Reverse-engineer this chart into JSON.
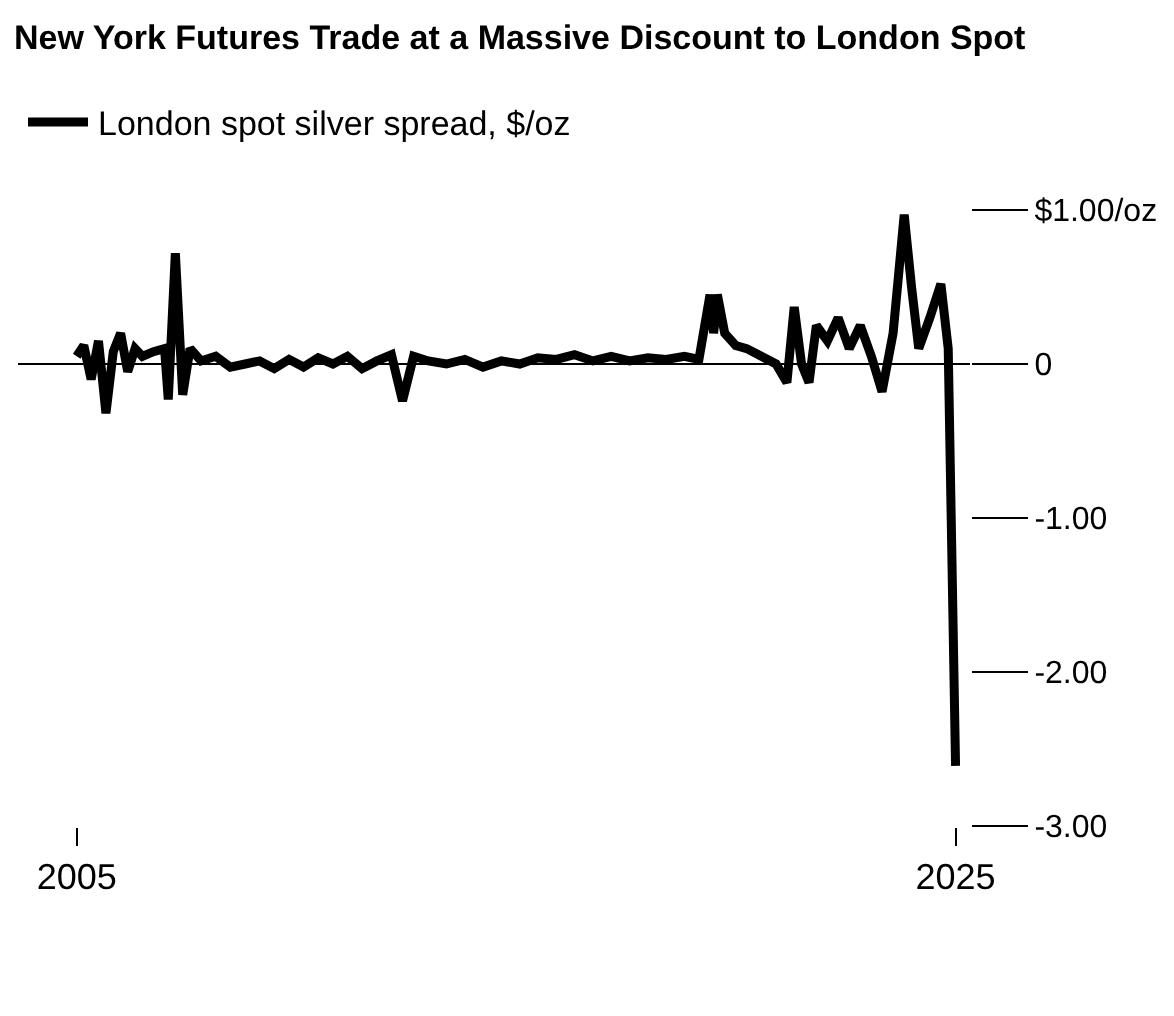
{
  "chart_data": {
    "type": "line",
    "title": "New York Futures Trade at a Massive Discount to London Spot",
    "x": [
      "2005-01",
      "2005-03",
      "2005-05",
      "2005-07",
      "2005-09",
      "2005-11",
      "2006-01",
      "2006-03",
      "2006-05",
      "2006-07",
      "2006-10",
      "2007-01",
      "2007-02",
      "2007-04",
      "2007-06",
      "2007-08",
      "2007-11",
      "2008-03",
      "2008-07",
      "2008-11",
      "2009-03",
      "2009-07",
      "2009-11",
      "2010-03",
      "2010-07",
      "2010-11",
      "2011-03",
      "2011-07",
      "2011-11",
      "2012-03",
      "2012-06",
      "2012-09",
      "2013-01",
      "2013-06",
      "2013-11",
      "2014-04",
      "2014-09",
      "2015-02",
      "2015-07",
      "2015-12",
      "2016-05",
      "2016-10",
      "2017-03",
      "2017-08",
      "2018-01",
      "2018-06",
      "2018-11",
      "2019-03",
      "2019-06",
      "2019-07",
      "2019-08",
      "2019-10",
      "2020-01",
      "2020-04",
      "2020-08",
      "2020-12",
      "2021-03",
      "2021-05",
      "2021-07",
      "2021-09",
      "2021-11",
      "2022-02",
      "2022-05",
      "2022-08",
      "2022-11",
      "2023-02",
      "2023-05",
      "2023-08",
      "2023-11",
      "2024-01",
      "2024-03",
      "2024-06",
      "2024-09",
      "2024-11",
      "2025-01"
    ],
    "series": [
      {
        "name": "London spot silver spread, $/oz",
        "color": "#000000",
        "values": [
          0.05,
          0.12,
          -0.1,
          0.15,
          -0.32,
          0.08,
          0.2,
          -0.05,
          0.1,
          0.05,
          0.08,
          0.1,
          -0.23,
          0.72,
          -0.2,
          0.1,
          0.02,
          0.05,
          -0.02,
          0.0,
          0.02,
          -0.03,
          0.03,
          -0.02,
          0.04,
          0.0,
          0.05,
          -0.03,
          0.02,
          0.06,
          -0.24,
          0.05,
          0.02,
          0.0,
          0.03,
          -0.02,
          0.02,
          0.0,
          0.04,
          0.03,
          0.06,
          0.02,
          0.05,
          0.02,
          0.04,
          0.03,
          0.05,
          0.03,
          0.45,
          0.2,
          0.45,
          0.2,
          0.12,
          0.1,
          0.05,
          0.0,
          -0.12,
          0.37,
          0.0,
          -0.12,
          0.25,
          0.15,
          0.3,
          0.1,
          0.25,
          0.05,
          -0.18,
          0.2,
          0.97,
          0.5,
          0.1,
          0.3,
          0.52,
          0.1,
          -2.61
        ]
      }
    ],
    "xlim": [
      "2003-09",
      "2025-05"
    ],
    "xticks": [
      {
        "value": "2005-01",
        "label": "2005"
      },
      {
        "value": "2025-01",
        "label": "2025"
      }
    ],
    "ylim": [
      -3,
      1
    ],
    "yticks": [
      {
        "value": 1,
        "label": "$1.00/oz"
      },
      0,
      {
        "value": -1,
        "label": "-1.00"
      },
      {
        "value": -2,
        "label": "-2.00"
      },
      {
        "value": -3,
        "label": "-3.00"
      }
    ],
    "ref_lines": [
      {
        "axis": "y",
        "value": 0,
        "color": "#000000"
      }
    ],
    "legend": "top left",
    "line_style": "solid"
  }
}
